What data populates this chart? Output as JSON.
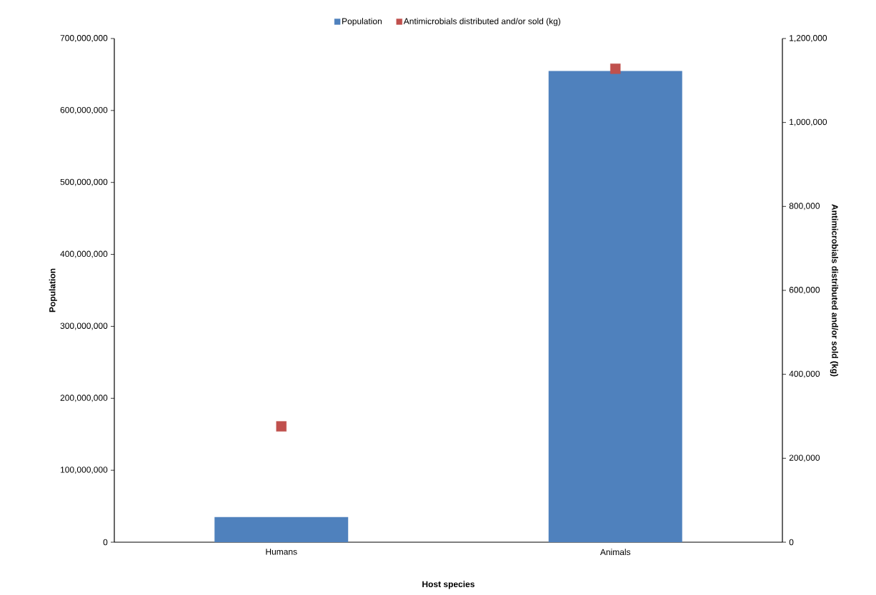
{
  "chart_data": {
    "type": "bar",
    "xlabel": "Host species",
    "ylabel": "Population",
    "y2label": "Antimicrobials distributed and/or sold (kg)",
    "categories": [
      "Humans",
      "Animals"
    ],
    "series": [
      {
        "name": "Population",
        "color": "#4f81bd",
        "values": [
          35000000,
          655000000
        ]
      },
      {
        "name": "Antimicrobials distributed and/or sold (kg)",
        "type": "scatter",
        "axis": "y2",
        "marker": "square",
        "color": "#c0504d",
        "values": [
          276000,
          1128000
        ]
      }
    ],
    "ylim": [
      0,
      700000000
    ],
    "yticks": [
      {
        "value": 0,
        "label": "0"
      },
      {
        "value": 100000000,
        "label": "100,000,000"
      },
      {
        "value": 200000000,
        "label": "200,000,000"
      },
      {
        "value": 300000000,
        "label": "300,000,000"
      },
      {
        "value": 400000000,
        "label": "400,000,000"
      },
      {
        "value": 500000000,
        "label": "500,000,000"
      },
      {
        "value": 600000000,
        "label": "600,000,000"
      },
      {
        "value": 700000000,
        "label": "700,000,000"
      }
    ],
    "y2lim": [
      0,
      1200000
    ],
    "y2ticks": [
      {
        "value": 0,
        "label": "0"
      },
      {
        "value": 200000,
        "label": "200,000"
      },
      {
        "value": 400000,
        "label": "400,000"
      },
      {
        "value": 600000,
        "label": "600,000"
      },
      {
        "value": 800000,
        "label": "800,000"
      },
      {
        "value": 1000000,
        "label": "1,000,000"
      },
      {
        "value": 1200000,
        "label": "1,200,000"
      }
    ],
    "legend": "top"
  }
}
